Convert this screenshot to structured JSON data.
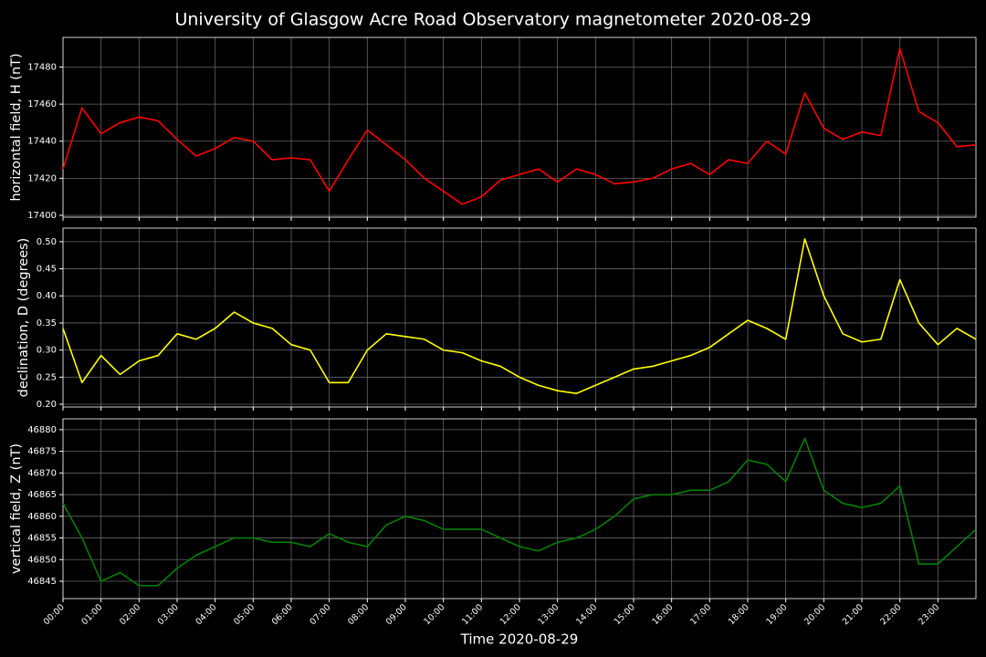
{
  "chart_data": [
    {
      "type": "line",
      "title": "University of Glasgow Acre Road Observatory magnetometer 2020-08-29",
      "ylabel": "horizontal field, H (nT)",
      "color": "#ff0000",
      "grid": true,
      "x": [
        0,
        0.5,
        1,
        1.5,
        2,
        2.5,
        3,
        3.5,
        4,
        4.5,
        5,
        5.5,
        6,
        6.5,
        7,
        7.5,
        8,
        8.5,
        9,
        9.5,
        10,
        10.5,
        11,
        11.5,
        12,
        12.5,
        13,
        13.5,
        14,
        14.5,
        15,
        15.5,
        16,
        16.5,
        17,
        17.5,
        18,
        18.5,
        19,
        19.5,
        20,
        20.5,
        21,
        21.5,
        22,
        22.5,
        23,
        23.5,
        24
      ],
      "values": [
        17425,
        17458,
        17444,
        17450,
        17453,
        17451,
        17441,
        17432,
        17436,
        17442,
        17440,
        17430,
        17431,
        17430,
        17413,
        17430,
        17446,
        17438,
        17430,
        17420,
        17413,
        17406,
        17410,
        17419,
        17422,
        17425,
        17418,
        17425,
        17422,
        17417,
        17418,
        17420,
        17425,
        17428,
        17422,
        17430,
        17428,
        17440,
        17433,
        17466,
        17447,
        17441,
        17445,
        17443,
        17490,
        17456,
        17450,
        17437,
        17438
      ],
      "xlim": [
        0,
        24
      ],
      "xticks": [
        0,
        1,
        2,
        3,
        4,
        5,
        6,
        7,
        8,
        9,
        10,
        11,
        12,
        13,
        14,
        15,
        16,
        17,
        18,
        19,
        20,
        21,
        22,
        23
      ],
      "ylim": [
        17399,
        17496
      ],
      "yticks": [
        17400,
        17420,
        17440,
        17460,
        17480
      ]
    },
    {
      "type": "line",
      "ylabel": "declination, D (degrees)",
      "color": "#ffff00",
      "grid": true,
      "x": [
        0,
        0.5,
        1,
        1.5,
        2,
        2.5,
        3,
        3.5,
        4,
        4.5,
        5,
        5.5,
        6,
        6.5,
        7,
        7.5,
        8,
        8.5,
        9,
        9.5,
        10,
        10.5,
        11,
        11.5,
        12,
        12.5,
        13,
        13.5,
        14,
        14.5,
        15,
        15.5,
        16,
        16.5,
        17,
        17.5,
        18,
        18.5,
        19,
        19.5,
        20,
        20.5,
        21,
        21.5,
        22,
        22.5,
        23,
        23.5,
        24
      ],
      "values": [
        0.34,
        0.24,
        0.29,
        0.255,
        0.28,
        0.29,
        0.33,
        0.32,
        0.34,
        0.37,
        0.35,
        0.34,
        0.31,
        0.3,
        0.24,
        0.24,
        0.3,
        0.33,
        0.325,
        0.32,
        0.3,
        0.295,
        0.28,
        0.27,
        0.25,
        0.235,
        0.225,
        0.22,
        0.235,
        0.25,
        0.265,
        0.27,
        0.28,
        0.29,
        0.305,
        0.33,
        0.355,
        0.34,
        0.32,
        0.505,
        0.4,
        0.33,
        0.315,
        0.32,
        0.43,
        0.35,
        0.31,
        0.34,
        0.32
      ],
      "xlim": [
        0,
        24
      ],
      "xticks": [
        0,
        1,
        2,
        3,
        4,
        5,
        6,
        7,
        8,
        9,
        10,
        11,
        12,
        13,
        14,
        15,
        16,
        17,
        18,
        19,
        20,
        21,
        22,
        23
      ],
      "ylim": [
        0.195,
        0.525
      ],
      "yticks": [
        {
          "value": 0.2,
          "label": "0.20"
        },
        0.25,
        {
          "value": 0.3,
          "label": "0.30"
        },
        0.35,
        {
          "value": 0.4,
          "label": "0.40"
        },
        0.45,
        {
          "value": 0.5,
          "label": "0.50"
        }
      ]
    },
    {
      "type": "line",
      "ylabel": "vertical field, Z (nT)",
      "xlabel": "Time 2020-08-29",
      "color": "#008000",
      "grid": true,
      "x": [
        0,
        0.5,
        1,
        1.5,
        2,
        2.5,
        3,
        3.5,
        4,
        4.5,
        5,
        5.5,
        6,
        6.5,
        7,
        7.5,
        8,
        8.5,
        9,
        9.5,
        10,
        10.5,
        11,
        11.5,
        12,
        12.5,
        13,
        13.5,
        14,
        14.5,
        15,
        15.5,
        16,
        16.5,
        17,
        17.5,
        18,
        18.5,
        19,
        19.5,
        20,
        20.5,
        21,
        21.5,
        22,
        22.5,
        23,
        23.5,
        24
      ],
      "values": [
        46863,
        46855,
        46845,
        46847,
        46844,
        46844,
        46848,
        46851,
        46853,
        46855,
        46855,
        46854,
        46854,
        46853,
        46856,
        46854,
        46853,
        46858,
        46860,
        46859,
        46857,
        46857,
        46857,
        46855,
        46853,
        46852,
        46854,
        46855,
        46857,
        46860,
        46864,
        46865,
        46865,
        46866,
        46866,
        46868,
        46873,
        46872,
        46868,
        46878,
        46866,
        46863,
        46862,
        46863,
        46867,
        46849,
        46849,
        46853,
        46857
      ],
      "xlim": [
        0,
        24
      ],
      "xticks": [
        {
          "value": 0,
          "label": "00:00"
        },
        {
          "value": 1,
          "label": "01:00"
        },
        {
          "value": 2,
          "label": "02:00"
        },
        {
          "value": 3,
          "label": "03:00"
        },
        {
          "value": 4,
          "label": "04:00"
        },
        {
          "value": 5,
          "label": "05:00"
        },
        {
          "value": 6,
          "label": "06:00"
        },
        {
          "value": 7,
          "label": "07:00"
        },
        {
          "value": 8,
          "label": "08:00"
        },
        {
          "value": 9,
          "label": "09:00"
        },
        {
          "value": 10,
          "label": "10:00"
        },
        {
          "value": 11,
          "label": "11:00"
        },
        {
          "value": 12,
          "label": "12:00"
        },
        {
          "value": 13,
          "label": "13:00"
        },
        {
          "value": 14,
          "label": "14:00"
        },
        {
          "value": 15,
          "label": "15:00"
        },
        {
          "value": 16,
          "label": "16:00"
        },
        {
          "value": 17,
          "label": "17:00"
        },
        {
          "value": 18,
          "label": "18:00"
        },
        {
          "value": 19,
          "label": "19:00"
        },
        {
          "value": 20,
          "label": "20:00"
        },
        {
          "value": 21,
          "label": "21:00"
        },
        {
          "value": 22,
          "label": "22:00"
        },
        {
          "value": 23,
          "label": "23:00"
        }
      ],
      "ylim": [
        46841,
        46882.5
      ],
      "yticks": [
        46845,
        46850,
        46855,
        46860,
        46865,
        46870,
        46875,
        46880
      ]
    }
  ]
}
